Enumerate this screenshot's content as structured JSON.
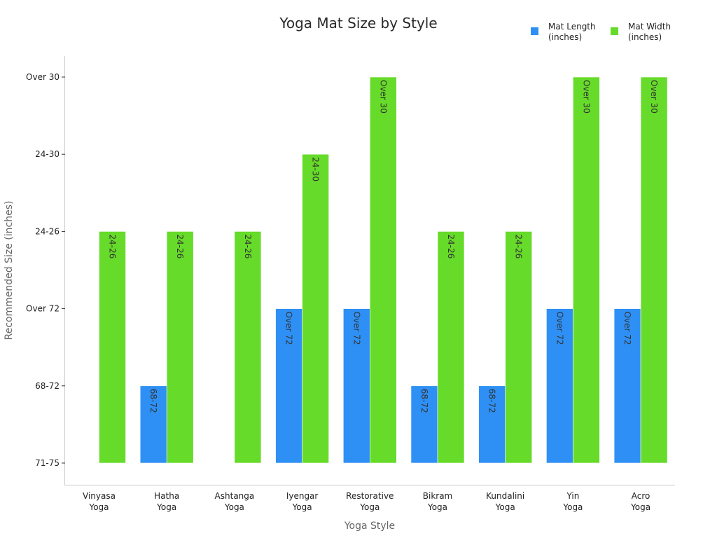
{
  "chart_data": {
    "type": "bar",
    "title": "Yoga Mat Size by Style",
    "xlabel": "Yoga Style",
    "ylabel": "Recommended Size (inches)",
    "y_categories": [
      "71-75",
      "68-72",
      "Over 72",
      "24-26",
      "24-30",
      "Over 30"
    ],
    "categories": [
      [
        "Vinyasa",
        "Yoga"
      ],
      [
        "Hatha",
        "Yoga"
      ],
      [
        "Ashtanga",
        "Yoga"
      ],
      [
        "Iyengar",
        "Yoga"
      ],
      [
        "Restorative",
        "Yoga"
      ],
      [
        "Bikram",
        "Yoga"
      ],
      [
        "Kundalini",
        "Yoga"
      ],
      [
        "Yin",
        "Yoga"
      ],
      [
        "Acro",
        "Yoga"
      ]
    ],
    "series": [
      {
        "name": [
          "Mat Length",
          "(inches)"
        ],
        "color": "#2e90f5",
        "values": [
          "71-75",
          "68-72",
          "71-75",
          "Over 72",
          "Over 72",
          "68-72",
          "68-72",
          "Over 72",
          "Over 72"
        ]
      },
      {
        "name": [
          "Mat Width",
          "(inches)"
        ],
        "color": "#66db29",
        "values": [
          "24-26",
          "24-26",
          "24-26",
          "24-30",
          "Over 30",
          "24-26",
          "24-26",
          "Over 30",
          "Over 30"
        ]
      }
    ],
    "legend_position": "top-right",
    "grid": false
  }
}
